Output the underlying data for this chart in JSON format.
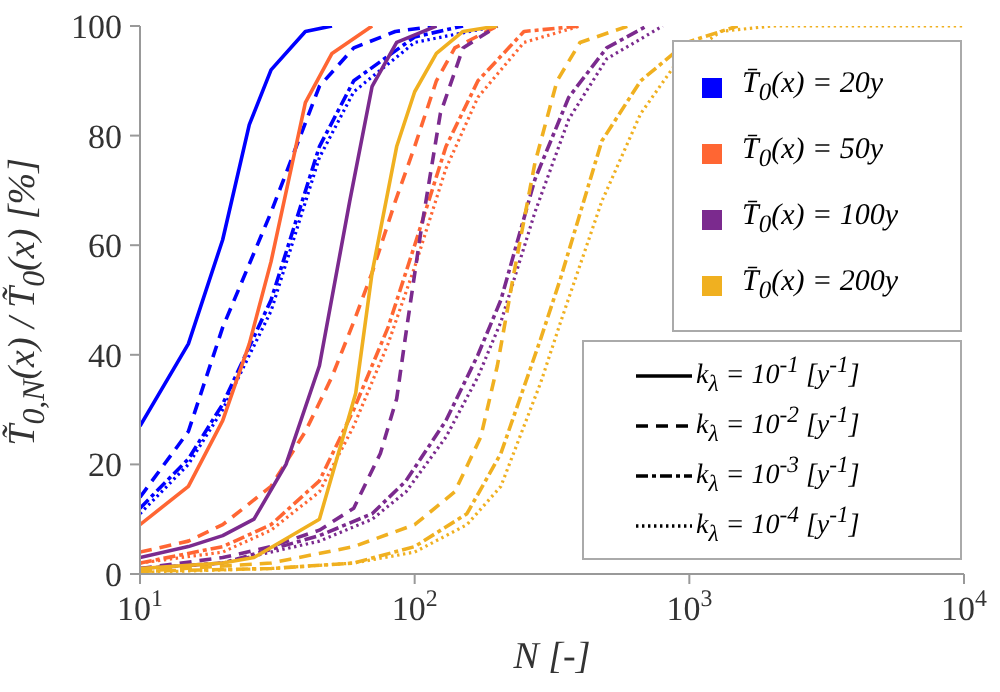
{
  "chart_data": {
    "type": "line",
    "xlabel": "N [-]",
    "ylabel": "T̃$_{0,N}$(x) / T̃$_{0}$(x) [%]",
    "log": "x",
    "xlim": [
      10,
      10000
    ],
    "xticks": [
      {
        "value": 10,
        "label": "10$^{1}$"
      },
      {
        "value": 100,
        "label": "10$^{2}$"
      },
      {
        "value": 1000,
        "label": "10$^{3}$"
      },
      {
        "value": 10000,
        "label": "10$^{4}$"
      }
    ],
    "ylim": [
      0,
      100
    ],
    "yticks": [
      0,
      20,
      40,
      60,
      80,
      100
    ],
    "marker": "none",
    "annotations": [
      "T̄$_{0}$(x) = 20y",
      "T̄$_{0}$(x) = 50y",
      "T̄$_{0}$(x) = 100y",
      "T̄$_{0}$(x) = 200y",
      "k$_{λ}$ = 10$^{-1}$ [y$^{-1}$]",
      "k$_{λ}$ = 10$^{-2}$ [y$^{-1}$]",
      "k$_{λ}$ = 10$^{-3}$ [y$^{-1}$]",
      "k$_{λ}$ = 10$^{-4}$ [y$^{-1}$]"
    ],
    "series": [
      {
        "color": "#0000ff",
        "line_style": "solid",
        "x": [
          10,
          15,
          20,
          25,
          30,
          40,
          50
        ],
        "values": [
          27,
          42,
          61,
          82,
          92,
          99,
          100
        ]
      },
      {
        "color": "#0000ff",
        "line_style": "dashed",
        "x": [
          10,
          15,
          20,
          30,
          45,
          60,
          85,
          120
        ],
        "values": [
          14,
          26,
          45,
          66,
          89,
          96,
          99,
          100
        ]
      },
      {
        "color": "#0000ff",
        "line_style": "dashdot",
        "x": [
          10,
          15,
          20,
          30,
          45,
          60,
          100,
          150
        ],
        "values": [
          12,
          21,
          31,
          50,
          78,
          90,
          98,
          100
        ]
      },
      {
        "color": "#0000ff",
        "line_style": "dotted",
        "x": [
          10,
          15,
          20,
          30,
          45,
          60,
          100,
          200
        ],
        "values": [
          11,
          20,
          30,
          48,
          76,
          88,
          97,
          100
        ]
      },
      {
        "color": "#ff6633",
        "line_style": "solid",
        "x": [
          10,
          15,
          20,
          25,
          30,
          40,
          50,
          70
        ],
        "values": [
          9,
          16,
          28,
          42,
          57,
          86,
          95,
          100
        ]
      },
      {
        "color": "#ff6633",
        "line_style": "dashed",
        "x": [
          10,
          15,
          20,
          30,
          40,
          50,
          60,
          70,
          85,
          100,
          120,
          140,
          200
        ],
        "values": [
          4,
          6,
          9,
          16,
          26,
          36,
          46,
          55,
          68,
          78,
          90,
          96,
          100
        ]
      },
      {
        "color": "#ff6633",
        "line_style": "dashdot",
        "x": [
          10,
          20,
          30,
          45,
          60,
          80,
          100,
          130,
          170,
          250,
          400
        ],
        "values": [
          2,
          5,
          9,
          17,
          30,
          45,
          60,
          78,
          90,
          99,
          100
        ]
      },
      {
        "color": "#ff6633",
        "line_style": "dotted",
        "x": [
          10,
          20,
          30,
          45,
          60,
          80,
          100,
          130,
          170,
          250,
          400
        ],
        "values": [
          2,
          4,
          8,
          15,
          27,
          42,
          56,
          74,
          87,
          97,
          100
        ]
      },
      {
        "color": "#7b2a8e",
        "line_style": "solid",
        "x": [
          10,
          15,
          20,
          26,
          34,
          45,
          58,
          70,
          86,
          120
        ],
        "values": [
          3,
          5,
          7,
          10,
          20,
          38,
          68,
          89,
          97,
          100
        ]
      },
      {
        "color": "#7b2a8e",
        "line_style": "dashed",
        "x": [
          10,
          20,
          30,
          45,
          60,
          75,
          86,
          93,
          105,
          124,
          150,
          200
        ],
        "values": [
          1,
          3,
          5,
          8,
          12,
          22,
          32,
          44,
          62,
          84,
          96,
          100
        ]
      },
      {
        "color": "#7b2a8e",
        "line_style": "dashdot",
        "x": [
          10,
          20,
          45,
          70,
          93,
          130,
          170,
          206,
          274,
          364,
          500,
          700
        ],
        "values": [
          1,
          2,
          7,
          11,
          17,
          28,
          40,
          50,
          72,
          87,
          96,
          100
        ]
      },
      {
        "color": "#7b2a8e",
        "line_style": "dotted",
        "x": [
          10,
          20,
          45,
          70,
          93,
          130,
          170,
          206,
          274,
          364,
          500,
          800
        ],
        "values": [
          1,
          2,
          6,
          10,
          15,
          25,
          36,
          46,
          66,
          83,
          94,
          100
        ]
      },
      {
        "color": "#f0b020",
        "line_style": "solid",
        "x": [
          10,
          20,
          26,
          45,
          61,
          70,
          86,
          100,
          120,
          150,
          200
        ],
        "values": [
          1,
          2,
          3,
          10,
          33,
          55,
          78,
          88,
          95,
          99,
          100
        ]
      },
      {
        "color": "#f0b020",
        "line_style": "dashed",
        "x": [
          10,
          30,
          60,
          100,
          140,
          174,
          200,
          230,
          274,
          330,
          400,
          600
        ],
        "values": [
          0.5,
          2,
          5,
          9,
          15,
          25,
          38,
          55,
          75,
          90,
          97,
          100
        ]
      },
      {
        "color": "#f0b020",
        "line_style": "dashdot",
        "x": [
          10,
          30,
          60,
          100,
          155,
          206,
          288,
          340,
          480,
          665,
          980,
          1500
        ],
        "values": [
          0.5,
          1,
          2,
          5,
          11,
          22,
          43,
          54,
          79,
          90,
          97,
          100
        ]
      },
      {
        "color": "#f0b020",
        "line_style": "dotted",
        "x": [
          10,
          30,
          60,
          100,
          155,
          206,
          288,
          340,
          480,
          665,
          890,
          1300,
          2000,
          10000
        ],
        "values": [
          0.3,
          1,
          2,
          4,
          9,
          16,
          35,
          46,
          68,
          84,
          93,
          99,
          100,
          100
        ]
      }
    ]
  }
}
